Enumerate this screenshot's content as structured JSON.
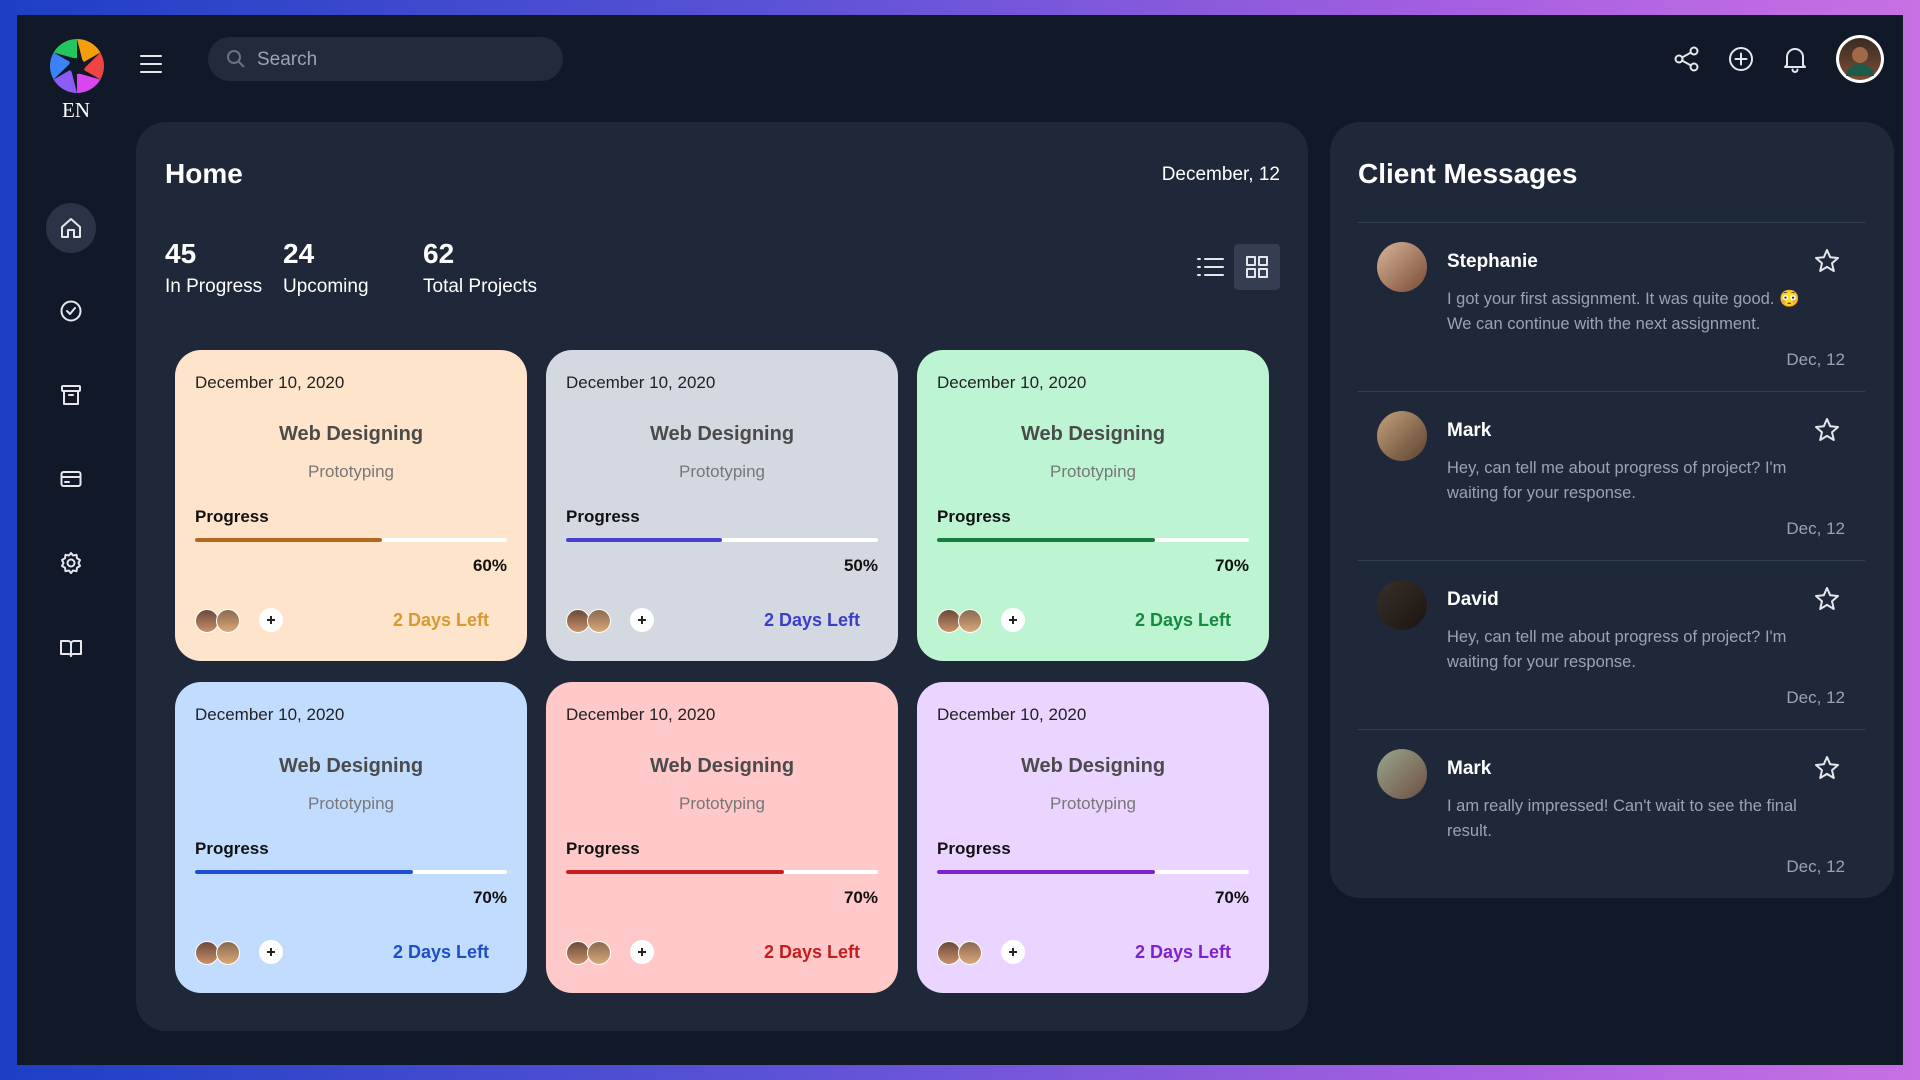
{
  "header": {
    "logo_text": "EN",
    "search_placeholder": "Search"
  },
  "home": {
    "title": "Home",
    "date": "December, 12",
    "stats": [
      {
        "value": 45,
        "label": "In Progress"
      },
      {
        "value": 24,
        "label": "Upcoming"
      },
      {
        "value": 62,
        "label": "Total Projects"
      }
    ]
  },
  "cards": [
    {
      "date": "December 10, 2020",
      "title": "Web Designing",
      "subtitle": "Prototyping",
      "progress_heading": "Progress",
      "progress": 60,
      "progress_label": "60%",
      "days_left": "2 Days Left"
    },
    {
      "date": "December 10, 2020",
      "title": "Web Designing",
      "subtitle": "Prototyping",
      "progress_heading": "Progress",
      "progress": 50,
      "progress_label": "50%",
      "days_left": "2 Days Left"
    },
    {
      "date": "December 10, 2020",
      "title": "Web Designing",
      "subtitle": "Prototyping",
      "progress_heading": "Progress",
      "progress": 70,
      "progress_label": "70%",
      "days_left": "2 Days Left"
    },
    {
      "date": "December 10, 2020",
      "title": "Web Designing",
      "subtitle": "Prototyping",
      "progress_heading": "Progress",
      "progress": 70,
      "progress_label": "70%",
      "days_left": "2 Days Left"
    },
    {
      "date": "December 10, 2020",
      "title": "Web Designing",
      "subtitle": "Prototyping",
      "progress_heading": "Progress",
      "progress": 70,
      "progress_label": "70%",
      "days_left": "2 Days Left"
    },
    {
      "date": "December 10, 2020",
      "title": "Web Designing",
      "subtitle": "Prototyping",
      "progress_heading": "Progress",
      "progress": 70,
      "progress_label": "70%",
      "days_left": "2 Days Left"
    }
  ],
  "messages": {
    "title": "Client Messages",
    "items": [
      {
        "name": "Stephanie",
        "text": "I got your first assignment. It was quite good. 😳 We can continue with the next assignment.",
        "date": "Dec, 12"
      },
      {
        "name": "Mark",
        "text": "Hey, can tell me about progress of project? I'm waiting for your response.",
        "date": "Dec, 12"
      },
      {
        "name": "David",
        "text": "Hey, can tell me about progress of project? I'm waiting for your response.",
        "date": "Dec, 12"
      },
      {
        "name": "Mark",
        "text": "I am really impressed! Can't wait to see the final result.",
        "date": "Dec, 12"
      }
    ]
  }
}
